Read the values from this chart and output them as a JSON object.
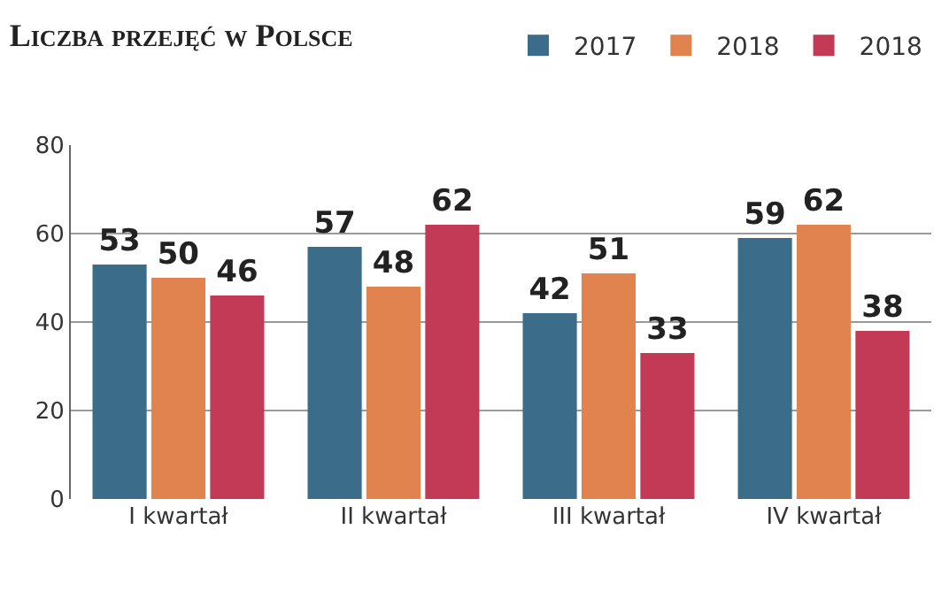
{
  "chart_data": {
    "type": "bar",
    "title": "Liczba przejęć w Polsce",
    "categories": [
      "I kwartał",
      "II kwartał",
      "III kwartał",
      "IV kwartał"
    ],
    "series": [
      {
        "name": "2017",
        "color": "#3b6d8a",
        "values": [
          53,
          57,
          42,
          59
        ]
      },
      {
        "name": "2018",
        "color": "#e0834f",
        "values": [
          50,
          48,
          51,
          62
        ]
      },
      {
        "name": "2018",
        "color": "#c23a55",
        "values": [
          46,
          62,
          33,
          38
        ]
      }
    ],
    "ylim": [
      0,
      80
    ],
    "yticks": [
      0,
      20,
      40,
      60,
      80
    ],
    "grid": "y",
    "legend": "top right",
    "data_labels": true
  }
}
